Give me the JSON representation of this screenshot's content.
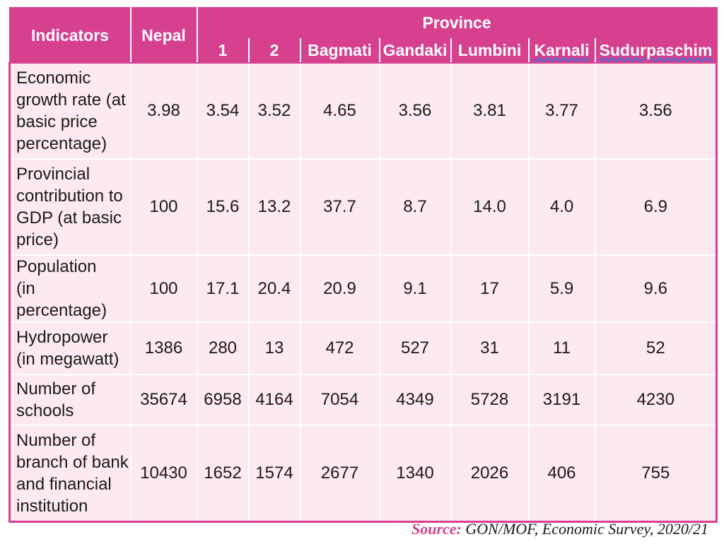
{
  "table": {
    "header": {
      "indicators": "Indicators",
      "nepal": "Nepal",
      "group": "Province",
      "provinces": [
        "1",
        "2",
        "Bagmati",
        "Gandaki",
        "Lumbini",
        "Karnali",
        "Sudurpaschim"
      ]
    },
    "rows": [
      {
        "label": [
          "Economic",
          "growth rate (at",
          "basic price",
          "percentage)"
        ],
        "values": [
          "3.98",
          "3.54",
          "3.52",
          "4.65",
          "3.56",
          "3.81",
          "3.77",
          "3.56"
        ]
      },
      {
        "label": [
          "Provincial",
          "contribution to",
          "GDP (at basic",
          "price)"
        ],
        "values": [
          "100",
          "15.6",
          "13.2",
          "37.7",
          "8.7",
          "14.0",
          "4.0",
          "6.9"
        ]
      },
      {
        "label": [
          "Population",
          "(in percentage)"
        ],
        "values": [
          "100",
          "17.1",
          "20.4",
          "20.9",
          "9.1",
          "17",
          "5.9",
          "9.6"
        ]
      },
      {
        "label": [
          "Hydropower",
          "(in megawatt)"
        ],
        "values": [
          "1386",
          "280",
          "13",
          "472",
          "527",
          "31",
          "11",
          "52"
        ]
      },
      {
        "label": [
          "Number of",
          "schools"
        ],
        "values": [
          "35674",
          "6958",
          "4164",
          "7054",
          "4349",
          "5728",
          "3191",
          "4230"
        ]
      },
      {
        "label": [
          "Number of",
          "branch of bank",
          "and financial",
          "institution"
        ],
        "values": [
          "10430",
          "1652",
          "1574",
          "2677",
          "1340",
          "2026",
          "406",
          "755"
        ]
      }
    ]
  },
  "source": {
    "label": "Source:",
    "text": " GON/MOF, Economic Survey, 2020/21"
  },
  "colors": {
    "header_bg": "#d6408f",
    "cell_bg": "#fce9f2",
    "header_text": "#ffffff"
  },
  "chart_data": {
    "type": "table",
    "columns": [
      "Indicators",
      "Nepal",
      "1",
      "2",
      "Bagmati",
      "Gandaki",
      "Lumbini",
      "Karnali",
      "Sudurpaschim"
    ],
    "column_group": {
      "label": "Province",
      "columns": [
        "1",
        "2",
        "Bagmati",
        "Gandaki",
        "Lumbini",
        "Karnali",
        "Sudurpaschim"
      ]
    },
    "rows": [
      [
        "Economic growth rate (at basic price percentage)",
        3.98,
        3.54,
        3.52,
        4.65,
        3.56,
        3.81,
        3.77,
        3.56
      ],
      [
        "Provincial contribution to GDP (at basic price)",
        100,
        15.6,
        13.2,
        37.7,
        8.7,
        14.0,
        4.0,
        6.9
      ],
      [
        "Population (in percentage)",
        100,
        17.1,
        20.4,
        20.9,
        9.1,
        17,
        5.9,
        9.6
      ],
      [
        "Hydropower (in megawatt)",
        1386,
        280,
        13,
        472,
        527,
        31,
        11,
        52
      ],
      [
        "Number of schools",
        35674,
        6958,
        4164,
        7054,
        4349,
        5728,
        3191,
        4230
      ],
      [
        "Number of branch of bank and financial institution",
        10430,
        1652,
        1574,
        2677,
        1340,
        2026,
        406,
        755
      ]
    ]
  }
}
